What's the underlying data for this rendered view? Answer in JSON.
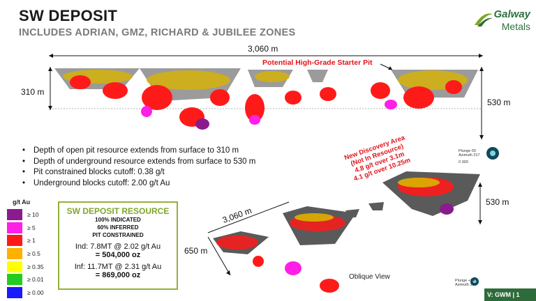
{
  "header": {
    "title": "SW DEPOSIT",
    "subtitle": "INCLUDES ADRIAN, GMZ, RICHARD & JUBILEE ZONES"
  },
  "logo": {
    "line1": "Galway",
    "line2": "Metals"
  },
  "section_view": {
    "width_label": "3,060 m",
    "left_depth_label": "310 m",
    "right_depth_label": "530 m",
    "annotation": "Potential High-Grade Starter Pit"
  },
  "oblique_view": {
    "width_label": "3,060 m",
    "left_depth_label": "650 m",
    "right_depth_label": "530 m",
    "caption": "Oblique View",
    "discovery_lines": [
      "New Discovery Area",
      "(Not In Resource)",
      "4.8 g/t over 3.1m",
      "4.1 g/t over 10.25m"
    ],
    "orientation_top": {
      "line1": "Plunge 00",
      "line2": "Azimuth 317",
      "scale": "0    300"
    },
    "orientation_bottom": {
      "line1": "Plunge +14",
      "line2": "Azimuth 307"
    }
  },
  "bullets": [
    "Depth of open pit resource extends from surface to 310 m",
    "Depth of underground resource extends from surface to 530 m",
    "Pit constrained blocks cutoff: 0.38 g/t",
    "Underground blocks cutoff: 2.00 g/t Au"
  ],
  "legend": {
    "title": "g/t Au",
    "items": [
      {
        "label": "≥ 10",
        "color": "#8b1a8f"
      },
      {
        "label": "≥ 5",
        "color": "#ff1fe6"
      },
      {
        "label": "≥ 1",
        "color": "#ff1a1a"
      },
      {
        "label": "≥ 0.5",
        "color": "#ffb000"
      },
      {
        "label": "≥ 0.35",
        "color": "#ffff00"
      },
      {
        "label": "≥ 0.01",
        "color": "#22cc22"
      },
      {
        "label": "≥ 0.00",
        "color": "#1a1aff"
      }
    ]
  },
  "resource": {
    "title": "SW DEPOSIT RESOURCE",
    "line1": "100% INDICATED",
    "line2": "60% INFERRED",
    "line3": "PIT CONSTRAINED",
    "indicated": "Ind: 7.8MT @ 2.02 g/t Au",
    "indicated_oz": "= 504,000 oz",
    "inferred": "Inf: 11.7MT @ 2.31 g/t Au",
    "inferred_oz": "= 869,000 oz"
  },
  "footer": "V: GWM  |  1",
  "colors": {
    "accent_green": "#7fa629",
    "brand_green": "#2e6b3a",
    "annotation_red": "#e0141b"
  }
}
